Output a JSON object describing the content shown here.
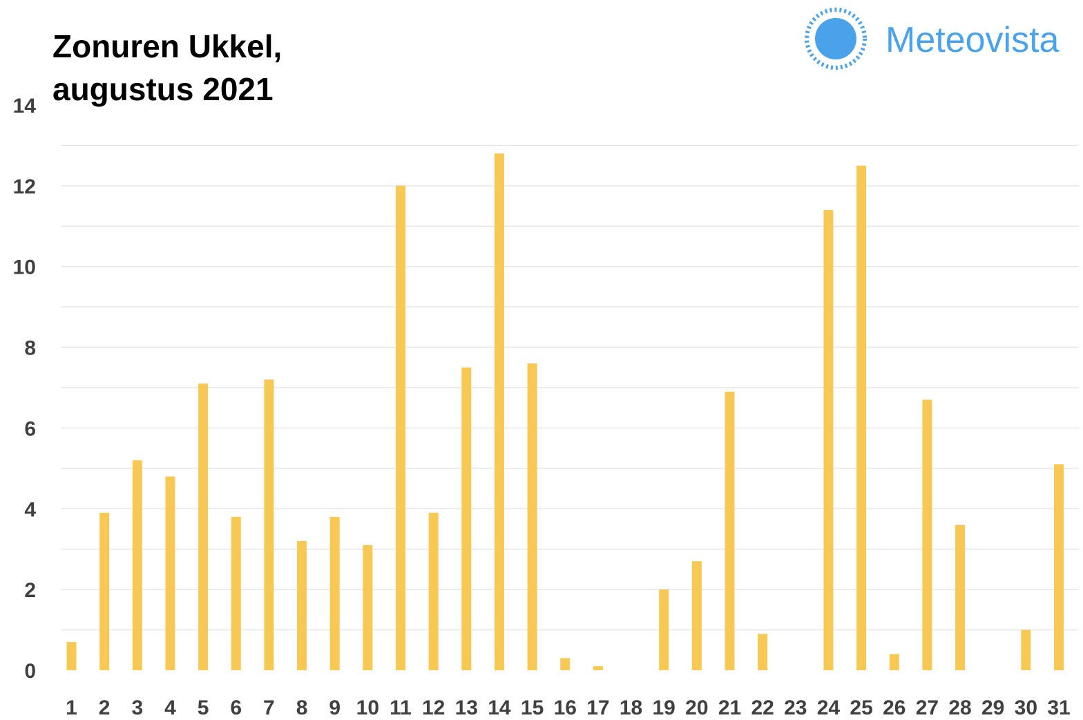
{
  "title_line1": "Zonuren Ukkel,",
  "title_line2": "augustus 2021",
  "brand": {
    "name": "Meteovista",
    "icon": "sun-icon",
    "color": "#4aa3ea"
  },
  "chart_data": {
    "type": "bar",
    "categories": [
      "1",
      "2",
      "3",
      "4",
      "5",
      "6",
      "7",
      "8",
      "9",
      "10",
      "11",
      "12",
      "13",
      "14",
      "15",
      "16",
      "17",
      "18",
      "19",
      "20",
      "21",
      "22",
      "23",
      "24",
      "25",
      "26",
      "27",
      "28",
      "29",
      "30",
      "31"
    ],
    "values": [
      0.7,
      3.9,
      5.2,
      4.8,
      7.1,
      3.8,
      7.2,
      3.2,
      3.8,
      3.1,
      12.0,
      3.9,
      7.5,
      12.8,
      7.6,
      0.3,
      0.1,
      0,
      2.0,
      2.7,
      6.9,
      0.9,
      0,
      11.4,
      12.5,
      0.4,
      6.7,
      3.6,
      0,
      1.0,
      5.1
    ],
    "title": "Zonuren Ukkel, augustus 2021",
    "xlabel": "",
    "ylabel": "",
    "ylim": [
      0,
      14
    ],
    "yticks": [
      0,
      2,
      4,
      6,
      8,
      10,
      12,
      14
    ],
    "grid": true,
    "bar_color": "#f7c954",
    "grid_color": "#e6e6e6",
    "tick_color": "#404040"
  }
}
